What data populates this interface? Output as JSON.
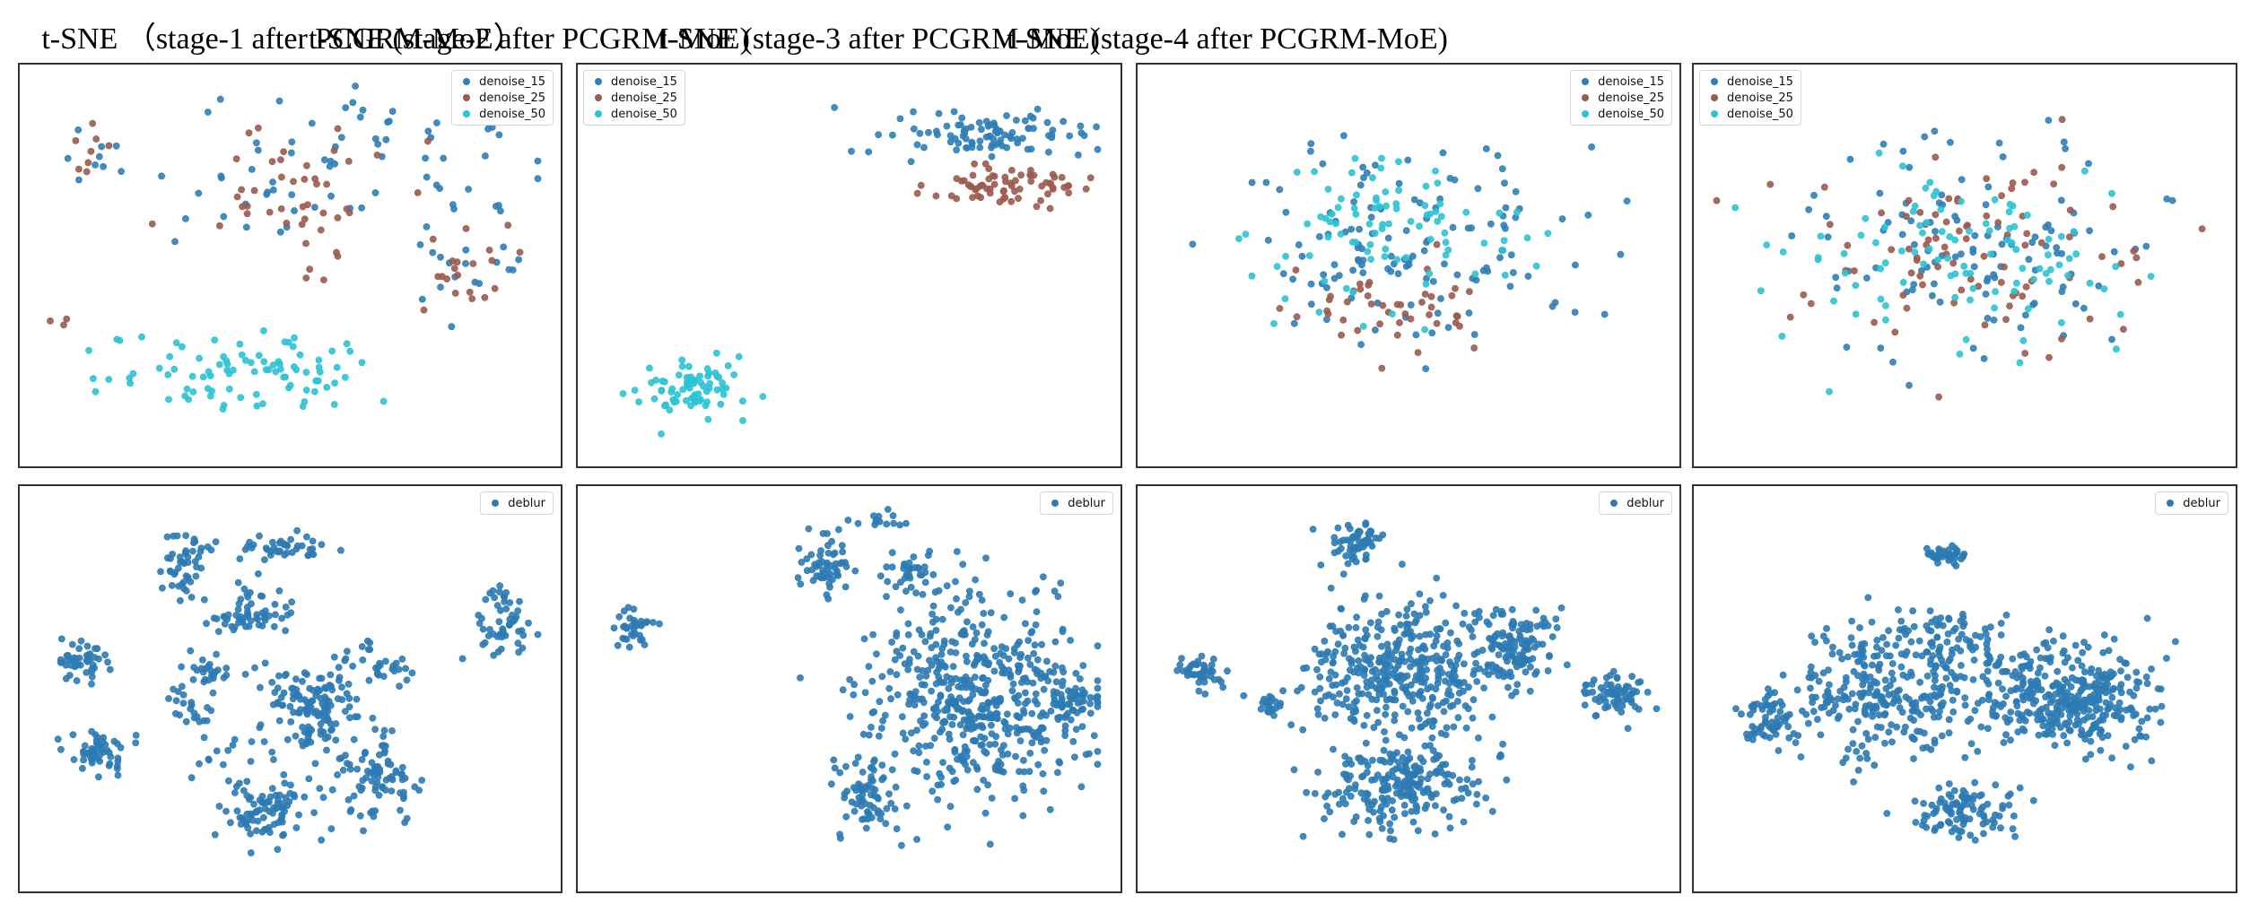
{
  "titles": [
    "t-SNE （stage-1 after PCGRM-MoE）",
    "t-SNE (stage-2 after PCGRM-MoE)",
    "t-SNE (stage-3 after PCGRM-MoE)",
    "t-SNE (stage-4 after PCGRM-MoE)"
  ],
  "colors": {
    "denoise_15": "#2f7fb6",
    "denoise_25": "#9c5b4e",
    "denoise_50": "#2cc3d4",
    "deblur": "#2d7bb4"
  },
  "legend_labels": {
    "denoise": [
      "denoise_15",
      "denoise_25",
      "denoise_50"
    ],
    "deblur": [
      "deblur"
    ]
  },
  "chart_data": [
    {
      "type": "scatter",
      "title": "t-SNE （stage-1 after PCGRM-MoE）",
      "legend": "upper right",
      "xlim": [
        0,
        100
      ],
      "ylim": [
        0,
        100
      ],
      "grid": false,
      "series": [
        {
          "name": "denoise_15",
          "clusters": [
            [
              72,
              80,
              30,
              18,
              45
            ],
            [
              42,
              70,
              20,
              16,
              25
            ],
            [
              12,
              80,
              6,
              8,
              8
            ],
            [
              85,
              50,
              14,
              14,
              20
            ]
          ]
        },
        {
          "name": "denoise_25",
          "clusters": [
            [
              50,
              72,
              24,
              20,
              45
            ],
            [
              12,
              80,
              6,
              8,
              8
            ],
            [
              85,
              50,
              14,
              14,
              20
            ],
            [
              5,
              35,
              4,
              2,
              3
            ]
          ]
        },
        {
          "name": "denoise_50",
          "clusters": [
            [
              42,
              22,
              26,
              11,
              90
            ]
          ]
        }
      ]
    },
    {
      "type": "scatter",
      "title": "t-SNE (stage-2 after PCGRM-MoE)",
      "legend": "upper left",
      "xlim": [
        0,
        100
      ],
      "ylim": [
        0,
        100
      ],
      "grid": false,
      "series": [
        {
          "name": "denoise_15",
          "clusters": [
            [
              75,
              84,
              20,
              6,
              95
            ]
          ]
        },
        {
          "name": "denoise_25",
          "clusters": [
            [
              80,
              71,
              13,
              6,
              70
            ]
          ]
        },
        {
          "name": "denoise_50",
          "clusters": [
            [
              20,
              18,
              10,
              8,
              75
            ]
          ]
        }
      ]
    },
    {
      "type": "scatter",
      "title": "t-SNE (stage-3 after PCGRM-MoE)",
      "legend": "upper right",
      "xlim": [
        0,
        100
      ],
      "ylim": [
        0,
        100
      ],
      "grid": false,
      "series": [
        {
          "name": "denoise_15",
          "clusters": [
            [
              50,
              55,
              34,
              28,
              130
            ]
          ]
        },
        {
          "name": "denoise_25",
          "clusters": [
            [
              48,
              38,
              20,
              14,
              45
            ]
          ]
        },
        {
          "name": "denoise_50",
          "clusters": [
            [
              45,
              60,
              26,
              20,
              90
            ]
          ]
        }
      ]
    },
    {
      "type": "scatter",
      "title": "t-SNE (stage-4 after PCGRM-MoE)",
      "legend": "upper left",
      "xlim": [
        0,
        100
      ],
      "ylim": [
        0,
        100
      ],
      "grid": false,
      "series": [
        {
          "name": "denoise_15",
          "clusters": [
            [
              52,
              55,
              36,
              28,
              110
            ]
          ]
        },
        {
          "name": "denoise_25",
          "clusters": [
            [
              52,
              55,
              36,
              28,
              90
            ]
          ]
        },
        {
          "name": "denoise_50",
          "clusters": [
            [
              54,
              55,
              30,
              24,
              100
            ]
          ]
        }
      ]
    },
    {
      "type": "scatter",
      "legend": "upper right",
      "xlim": [
        0,
        100
      ],
      "ylim": [
        0,
        100
      ],
      "grid": false,
      "series": [
        {
          "name": "deblur",
          "clusters": [
            [
              10,
              57,
              6,
              4,
              45
            ],
            [
              13,
              33,
              6,
              6,
              55
            ],
            [
              29,
              82,
              5,
              9,
              45
            ],
            [
              49,
              87,
              12,
              4,
              45
            ],
            [
              43,
              70,
              9,
              6,
              60
            ],
            [
              34,
              54,
              4,
              4,
              25
            ],
            [
              54,
              45,
              9,
              10,
              130
            ],
            [
              67,
              27,
              9,
              12,
              85
            ],
            [
              45,
              18,
              8,
              9,
              90
            ],
            [
              69,
              55,
              4,
              4,
              20
            ],
            [
              91,
              67,
              6,
              10,
              55
            ],
            [
              30,
              44,
              5,
              6,
              20
            ],
            [
              40,
              40,
              15,
              15,
              20
            ],
            [
              62,
              60,
              5,
              5,
              10
            ]
          ]
        }
      ]
    },
    {
      "type": "scatter",
      "legend": "upper right",
      "xlim": [
        0,
        100
      ],
      "ylim": [
        0,
        100
      ],
      "grid": false,
      "series": [
        {
          "name": "deblur",
          "clusters": [
            [
              8,
              66,
              4,
              6,
              35
            ],
            [
              45,
              82,
              5,
              7,
              55
            ],
            [
              62,
              80,
              6,
              6,
              40
            ],
            [
              75,
              48,
              21,
              25,
              520
            ],
            [
              54,
              22,
              6,
              10,
              70
            ],
            [
              93,
              46,
              4,
              6,
              40
            ],
            [
              56,
              94,
              6,
              2,
              15
            ]
          ]
        }
      ]
    },
    {
      "type": "scatter",
      "legend": "upper right",
      "xlim": [
        0,
        100
      ],
      "ylim": [
        0,
        100
      ],
      "grid": false,
      "series": [
        {
          "name": "deblur",
          "clusters": [
            [
              40,
              88,
              5,
              6,
              60
            ],
            [
              9,
              54,
              5,
              5,
              45
            ],
            [
              23,
              46,
              3,
              4,
              20
            ],
            [
              70,
              62,
              8,
              9,
              120
            ],
            [
              90,
              48,
              6,
              6,
              70
            ],
            [
              48,
              55,
              20,
              18,
              380
            ],
            [
              48,
              25,
              16,
              12,
              220
            ]
          ]
        }
      ]
    },
    {
      "type": "scatter",
      "legend": "upper right",
      "xlim": [
        0,
        100
      ],
      "ylim": [
        0,
        100
      ],
      "grid": false,
      "series": [
        {
          "name": "deblur",
          "clusters": [
            [
              46,
              85,
              4,
              2,
              40
            ],
            [
              35,
              48,
              20,
              16,
              280
            ],
            [
              70,
              48,
              16,
              14,
              360
            ],
            [
              50,
              18,
              10,
              7,
              100
            ],
            [
              12,
              42,
              6,
              8,
              60
            ],
            [
              45,
              64,
              12,
              8,
              80
            ]
          ]
        }
      ]
    }
  ]
}
